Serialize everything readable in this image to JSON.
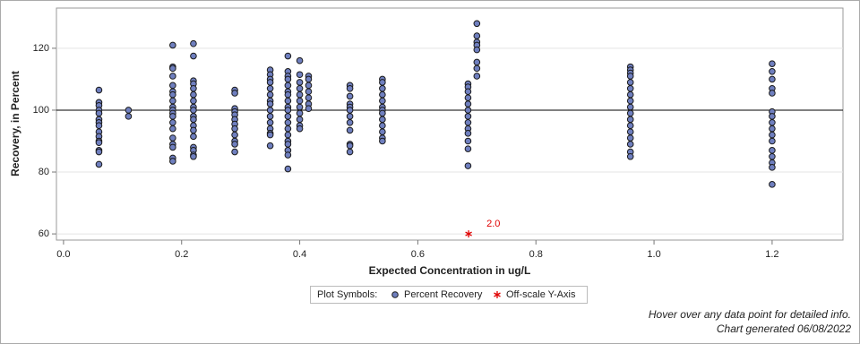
{
  "chart_data": {
    "type": "scatter",
    "xlabel": "Expected Concentration in ug/L",
    "ylabel": "Recovery, in Percent",
    "xlim": [
      -0.012,
      1.32
    ],
    "ylim": [
      58,
      133
    ],
    "xticks": [
      {
        "value": 0,
        "label": "0.0"
      },
      0.2,
      0.4,
      0.6,
      0.8,
      {
        "value": 1,
        "label": "1.0"
      },
      1.2
    ],
    "yticks": [
      60,
      80,
      100,
      120
    ],
    "grid": true,
    "hline": 100,
    "legend_title": "Plot Symbols:",
    "series": [
      {
        "name": "Percent Recovery",
        "color": "#6f7fbf",
        "x": [
          0.06,
          0.06,
          0.06,
          0.06,
          0.06,
          0.06,
          0.06,
          0.06,
          0.06,
          0.06,
          0.06,
          0.06,
          0.06,
          0.06,
          0.06,
          0.11,
          0.11,
          0.185,
          0.185,
          0.185,
          0.185,
          0.185,
          0.185,
          0.185,
          0.185,
          0.185,
          0.185,
          0.185,
          0.185,
          0.185,
          0.185,
          0.185,
          0.185,
          0.185,
          0.185,
          0.185,
          0.22,
          0.22,
          0.22,
          0.22,
          0.22,
          0.22,
          0.22,
          0.22,
          0.22,
          0.22,
          0.22,
          0.22,
          0.22,
          0.22,
          0.22,
          0.22,
          0.22,
          0.22,
          0.29,
          0.29,
          0.29,
          0.29,
          0.29,
          0.29,
          0.29,
          0.29,
          0.29,
          0.29,
          0.29,
          0.29,
          0.35,
          0.35,
          0.35,
          0.35,
          0.35,
          0.35,
          0.35,
          0.35,
          0.35,
          0.35,
          0.35,
          0.35,
          0.35,
          0.35,
          0.35,
          0.38,
          0.38,
          0.38,
          0.38,
          0.38,
          0.38,
          0.38,
          0.38,
          0.38,
          0.38,
          0.38,
          0.38,
          0.38,
          0.38,
          0.38,
          0.38,
          0.38,
          0.38,
          0.38,
          0.4,
          0.4,
          0.4,
          0.4,
          0.4,
          0.4,
          0.4,
          0.4,
          0.4,
          0.4,
          0.4,
          0.415,
          0.415,
          0.415,
          0.415,
          0.415,
          0.415,
          0.415,
          0.485,
          0.485,
          0.485,
          0.485,
          0.485,
          0.485,
          0.485,
          0.485,
          0.485,
          0.485,
          0.485,
          0.485,
          0.54,
          0.54,
          0.54,
          0.54,
          0.54,
          0.54,
          0.54,
          0.54,
          0.54,
          0.54,
          0.54,
          0.54,
          0.54,
          0.685,
          0.685,
          0.685,
          0.685,
          0.685,
          0.685,
          0.685,
          0.685,
          0.685,
          0.685,
          0.685,
          0.685,
          0.685,
          0.7,
          0.7,
          0.7,
          0.7,
          0.7,
          0.7,
          0.7,
          0.7,
          0.96,
          0.96,
          0.96,
          0.96,
          0.96,
          0.96,
          0.96,
          0.96,
          0.96,
          0.96,
          0.96,
          0.96,
          0.96,
          0.96,
          0.96,
          0.96,
          0.96,
          1.2,
          1.2,
          1.2,
          1.2,
          1.2,
          1.2,
          1.2,
          1.2,
          1.2,
          1.2,
          1.2,
          1.2,
          1.2,
          1.2,
          1.2,
          1.2
        ],
        "values": [
          106.5,
          102.5,
          101.5,
          100,
          99,
          97,
          96,
          95,
          93,
          91.5,
          90,
          89.5,
          87,
          86.5,
          82.5,
          100,
          98,
          121,
          114,
          113.5,
          111,
          108,
          106,
          105,
          103,
          101,
          100,
          99,
          98,
          96,
          94,
          91,
          89,
          88,
          84.5,
          83.5,
          121.5,
          117.5,
          109.5,
          108.5,
          107,
          105,
          103,
          101,
          100,
          98,
          97,
          95,
          93.5,
          91.5,
          88,
          87,
          85.5,
          85,
          106.5,
          105.5,
          100.5,
          99.5,
          98.5,
          97,
          95.5,
          94,
          92,
          90,
          89,
          86.5,
          113,
          111.5,
          110,
          109,
          107,
          105,
          103,
          102,
          100,
          98,
          96,
          94,
          92.5,
          92,
          88.5,
          117.5,
          112.5,
          111,
          110,
          108,
          106,
          105,
          103,
          101,
          100,
          98,
          96,
          94,
          92,
          90,
          89,
          87,
          85.5,
          81,
          116,
          111.5,
          109,
          107,
          105,
          103,
          101,
          99,
          97,
          95,
          94,
          111,
          110,
          108,
          106,
          104,
          102,
          100.5,
          108,
          107,
          104.5,
          102,
          101,
          100,
          98,
          96,
          93.5,
          89,
          88.5,
          86.5,
          110,
          109,
          107,
          105,
          103,
          101,
          100,
          99,
          97,
          95,
          93,
          91,
          90,
          108.5,
          107.5,
          106,
          104,
          102,
          100,
          98,
          96,
          94,
          92.5,
          90,
          87.5,
          82,
          128,
          124,
          122,
          121,
          119.5,
          115.5,
          113.5,
          111,
          114,
          113,
          112,
          111,
          109,
          107,
          105,
          103,
          101,
          99,
          97,
          95,
          93,
          91,
          89,
          86.5,
          85,
          115,
          112.5,
          110,
          107,
          105.5,
          99.5,
          98,
          96,
          94,
          92,
          90,
          87,
          85,
          83,
          81.5,
          76
        ]
      },
      {
        "name": "Off-scale Y-Axis",
        "color": "#e00000",
        "x": [
          0.686
        ],
        "values": [
          60
        ]
      }
    ],
    "annotations": [
      {
        "text": "2.0"
      }
    ]
  },
  "footer": [
    "Hover over any data point for detailed info.",
    "Chart generated 06/08/2022"
  ]
}
